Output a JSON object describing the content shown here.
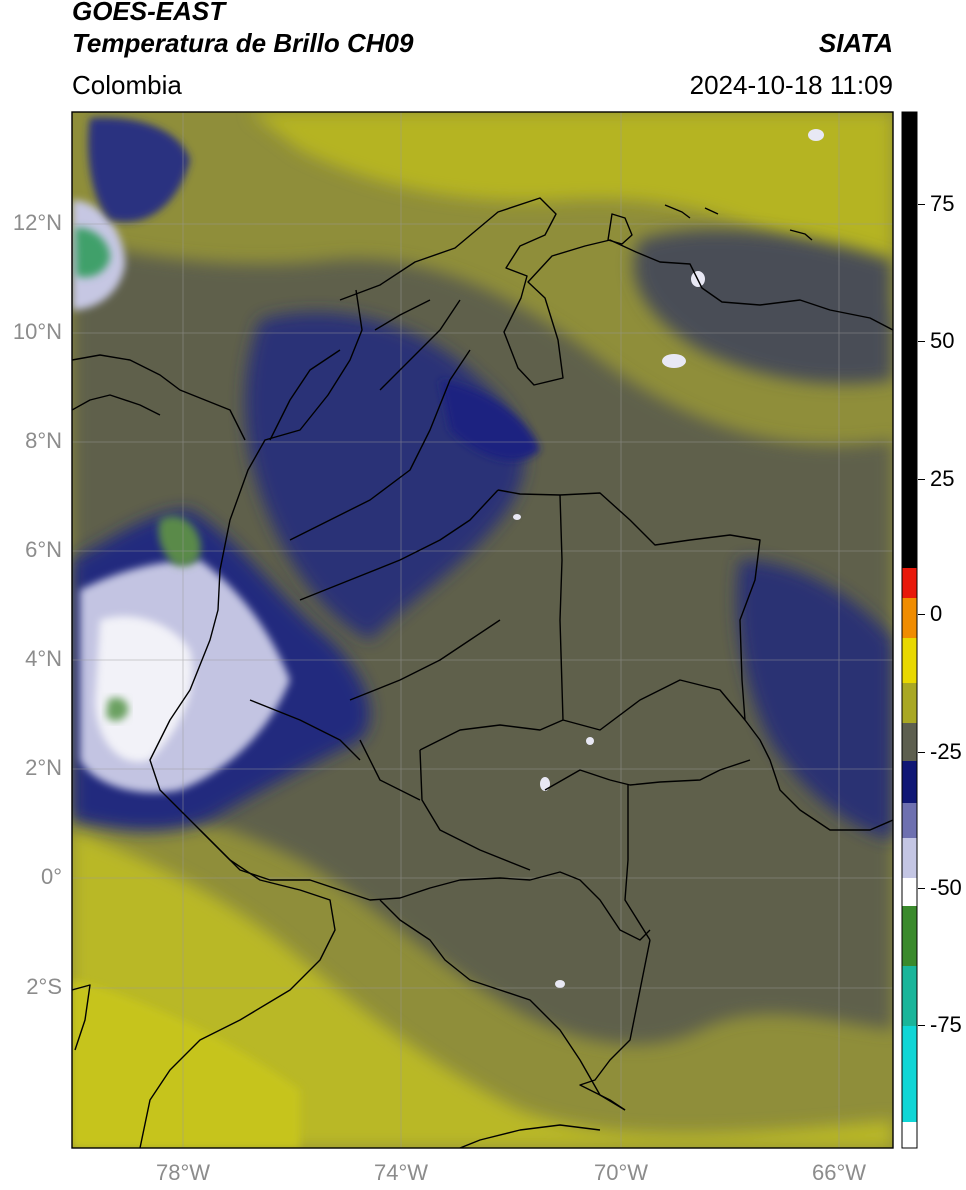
{
  "header": {
    "satellite": "GOES-EAST",
    "product": "Temperatura de Brillo CH09",
    "region": "Colombia",
    "agency": "SIATA",
    "timestamp": "2024-10-18 11:09"
  },
  "map": {
    "lat_ticks": [
      "12°N",
      "10°N",
      "8°N",
      "6°N",
      "4°N",
      "2°N",
      "0°",
      "2°S"
    ],
    "lon_ticks": [
      "78°W",
      "74°W",
      "70°W",
      "66°W"
    ],
    "extent": {
      "lon_min": -80.0,
      "lon_max": -65.0,
      "lat_min": -5.0,
      "lat_max": 14.0
    }
  },
  "colorbar": {
    "ticks": [
      "75",
      "50",
      "25",
      "0",
      "-25",
      "-50",
      "-75"
    ],
    "colors": {
      "black": "#000000",
      "red": "#e8180a",
      "orange": "#f08c00",
      "yellow": "#f2ee00",
      "olive": "#a9a824",
      "gray": "#5d5f4f",
      "navy": "#101775",
      "lavender": "#c4c6e4",
      "white": "#ffffff",
      "green": "#3a8a2c",
      "teal": "#1ab59a",
      "cyan": "#10d6d6"
    }
  }
}
